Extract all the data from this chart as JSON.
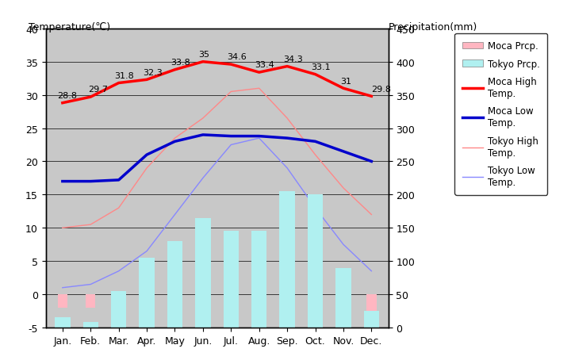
{
  "months": [
    "Jan.",
    "Feb.",
    "Mar.",
    "Apr.",
    "May",
    "Jun.",
    "Jul.",
    "Aug.",
    "Sep.",
    "Oct.",
    "Nov.",
    "Dec."
  ],
  "moca_high": [
    28.8,
    29.7,
    31.8,
    32.3,
    33.8,
    35.0,
    34.6,
    33.4,
    34.3,
    33.1,
    31.0,
    29.8
  ],
  "moca_low": [
    17.0,
    17.0,
    17.2,
    21.0,
    23.0,
    24.0,
    23.8,
    23.8,
    23.5,
    23.0,
    21.5,
    20.0
  ],
  "tokyo_high": [
    10.0,
    10.5,
    13.0,
    19.0,
    23.5,
    26.5,
    30.5,
    31.0,
    26.5,
    21.0,
    16.0,
    12.0
  ],
  "tokyo_low": [
    1.0,
    1.5,
    3.5,
    6.5,
    12.0,
    17.5,
    22.5,
    23.5,
    19.0,
    13.0,
    7.5,
    3.5
  ],
  "tokyo_prcp_mm": [
    15,
    8,
    55,
    105,
    130,
    165,
    145,
    145,
    205,
    200,
    90,
    25
  ],
  "moca_prcp_neg": [
    -2.0,
    -2.0,
    -1.5,
    -2.0,
    -3.5,
    -2.5,
    -3.5,
    -1.0,
    -3.0,
    -2.5,
    -2.0,
    -3.0
  ],
  "title_left": "Temperature(℃)",
  "title_right": "Precipitation(mm)",
  "bg_color": "#c8c8c8",
  "moca_high_color": "#ff0000",
  "moca_low_color": "#0000cc",
  "tokyo_high_color": "#ff8888",
  "tokyo_low_color": "#8888ff",
  "moca_prcp_color": "#ffb6c1",
  "tokyo_prcp_color": "#b0f0f0",
  "ylim_temp": [
    -5,
    40
  ],
  "ylim_prcp": [
    0,
    450
  ],
  "yticks_temp": [
    -5,
    0,
    5,
    10,
    15,
    20,
    25,
    30,
    35,
    40
  ],
  "yticks_prcp": [
    0,
    50,
    100,
    150,
    200,
    250,
    300,
    350,
    400,
    450
  ],
  "moca_high_labels": [
    "28.8",
    "29.7",
    "31.8",
    "32.3",
    "33.8",
    "35",
    "34.6",
    "33.4",
    "34.3",
    "33.1",
    "31",
    "29.8"
  ]
}
